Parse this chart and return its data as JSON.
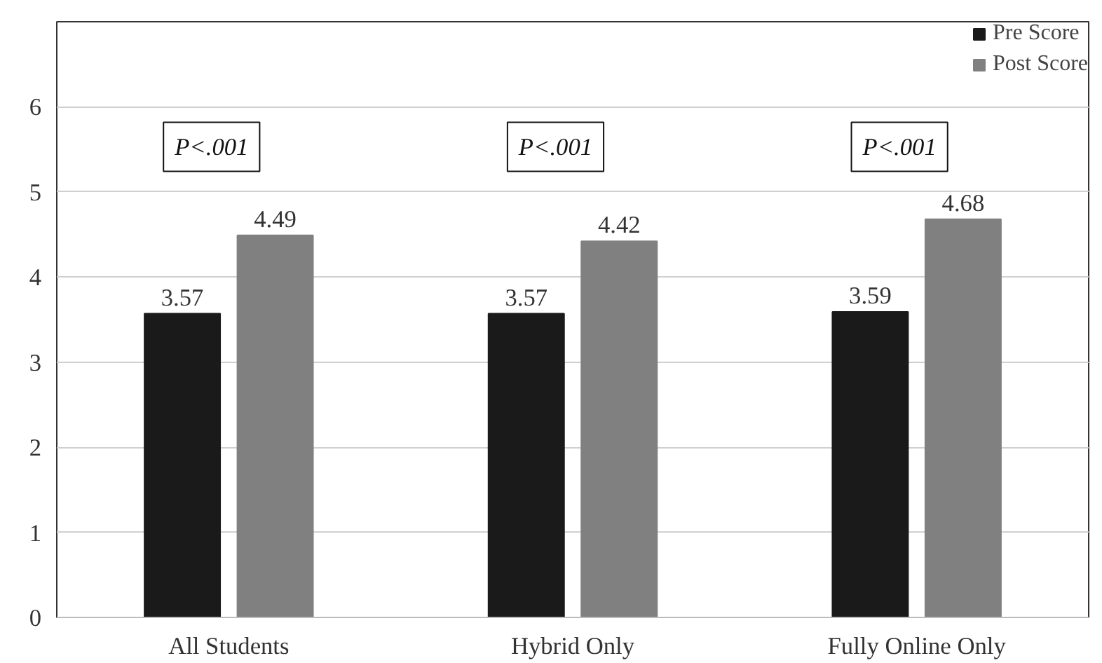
{
  "chart_data": {
    "type": "bar",
    "categories": [
      "All Students",
      "Hybrid Only",
      "Fully Online Only"
    ],
    "series": [
      {
        "name": "Pre Score",
        "color": "#1a1a1a",
        "values": [
          3.57,
          3.57,
          3.59
        ]
      },
      {
        "name": "Post Score",
        "color": "#808080",
        "values": [
          4.49,
          4.42,
          4.68
        ]
      }
    ],
    "ylim": [
      0,
      7
    ],
    "yticks": [
      0,
      1,
      2,
      3,
      4,
      5,
      6
    ],
    "grid": "y",
    "legend": "top right",
    "data_labels": true,
    "annotations": [
      "P<.001",
      "P<.001",
      "P<.001"
    ]
  }
}
